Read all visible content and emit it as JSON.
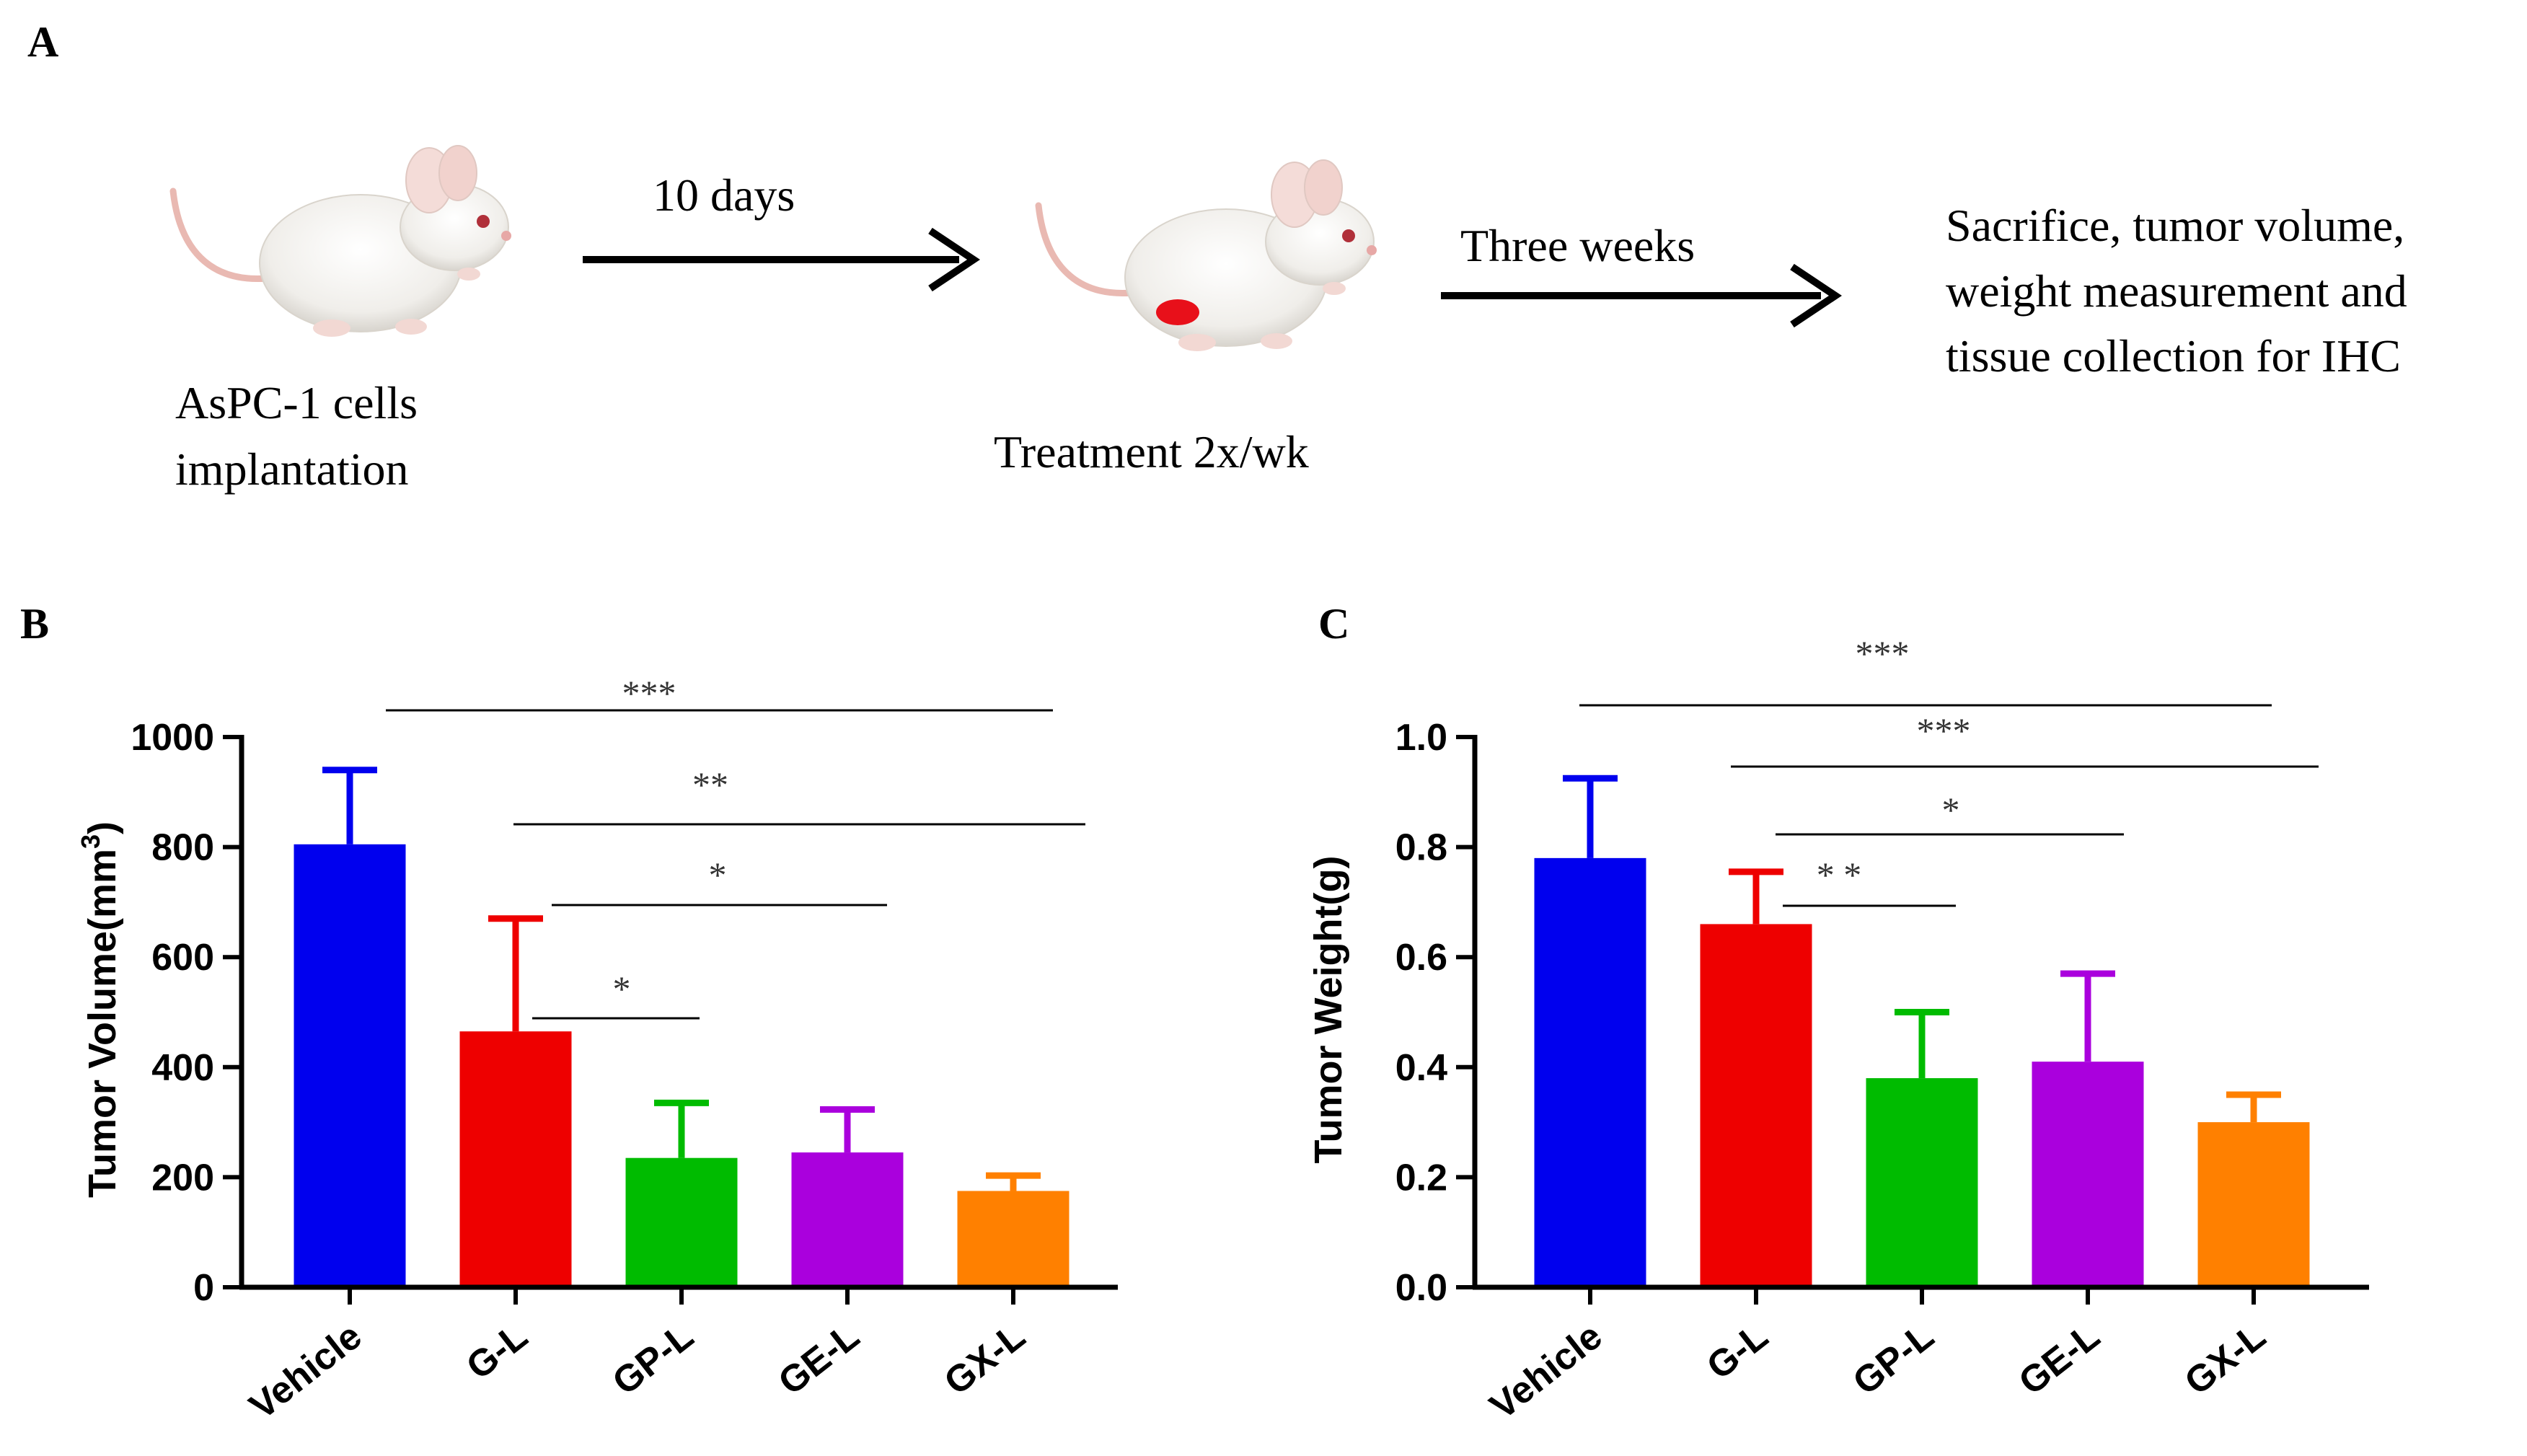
{
  "panel_a": {
    "label": "A",
    "step1_line1": "AsPC-1 cells",
    "step1_line2": "implantation",
    "arrow1_label": "10 days",
    "step2_label": "Treatment 2x/wk",
    "arrow2_label": "Three weeks",
    "result_line1": "Sacrifice, tumor volume,",
    "result_line2": "weight measurement and",
    "result_line3": "tissue collection for IHC"
  },
  "colors": {
    "Vehicle": "#0000ee",
    "G-L": "#ee0000",
    "GP-L": "#00bb00",
    "GE-L": "#aa00dd",
    "GX-L": "#ff8000",
    "tumor_dot": "#e8101a"
  },
  "chart_data": [
    {
      "panel_label": "B",
      "type": "bar",
      "categories": [
        "Vehicle",
        "G-L",
        "GP-L",
        "GE-L",
        "GX-L"
      ],
      "values": [
        805,
        465,
        235,
        245,
        175
      ],
      "errors": [
        135,
        205,
        100,
        78,
        28
      ],
      "ylabel": "Tumor Volume(mm",
      "ylabel_sup": "3",
      "ylabel_close": ")",
      "ylim": [
        0,
        1000
      ],
      "yticks": [
        0,
        200,
        400,
        600,
        800,
        1000
      ],
      "ytick_labels": [
        "0",
        "200",
        "400",
        "600",
        "800",
        "1000"
      ],
      "significance": [
        {
          "from": "Vehicle",
          "to": "GX-L",
          "label": "***"
        },
        {
          "from": "G-L",
          "to": "GX-L",
          "label": "**"
        },
        {
          "from": "G-L",
          "to": "GE-L",
          "label": "*"
        },
        {
          "from": "G-L",
          "to": "GP-L",
          "label": "*"
        }
      ]
    },
    {
      "panel_label": "C",
      "type": "bar",
      "categories": [
        "Vehicle",
        "G-L",
        "GP-L",
        "GE-L",
        "GX-L"
      ],
      "values": [
        0.78,
        0.66,
        0.38,
        0.41,
        0.3
      ],
      "errors": [
        0.145,
        0.095,
        0.12,
        0.16,
        0.05
      ],
      "ylabel": "Tumor Weight(g)",
      "ylim": [
        0,
        1.0
      ],
      "yticks": [
        0,
        0.2,
        0.4,
        0.6,
        0.8,
        1.0
      ],
      "ytick_labels": [
        "0.0",
        "0.2",
        "0.4",
        "0.6",
        "0.8",
        "1.0"
      ],
      "significance": [
        {
          "from": "Vehicle",
          "to": "GX-L",
          "label": "***"
        },
        {
          "from": "G-L",
          "to": "GX-L",
          "label": "***"
        },
        {
          "from": "G-L",
          "to": "GE-L",
          "label": "*"
        },
        {
          "from": "G-L",
          "to": "GP-L",
          "label": "* *"
        }
      ]
    }
  ]
}
